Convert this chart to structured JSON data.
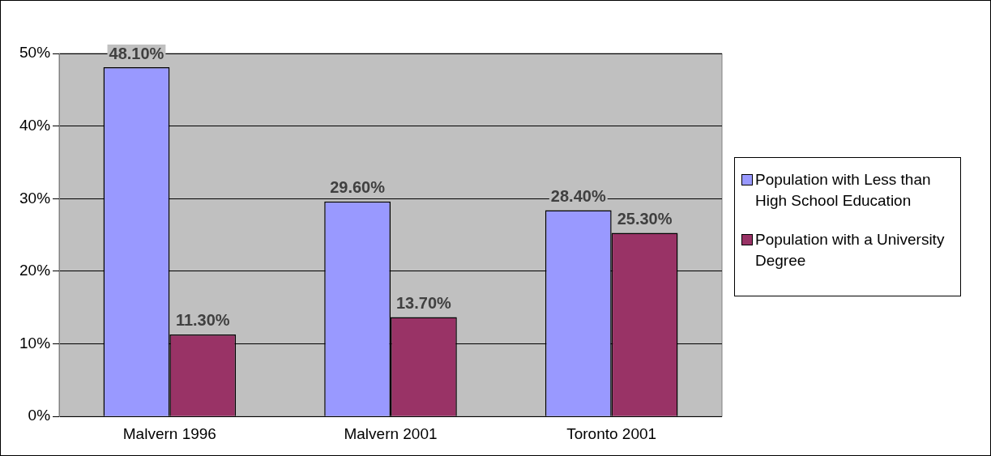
{
  "chart_data": {
    "type": "bar",
    "categories": [
      "Malvern 1996",
      "Malvern 2001",
      "Toronto 2001"
    ],
    "series": [
      {
        "name": "Population with Less than High School Education",
        "color": "#9999ff",
        "values": [
          48.1,
          29.6,
          28.4
        ],
        "value_labels": [
          "48.10%",
          "29.60%",
          "28.40%"
        ]
      },
      {
        "name": "Population with a University Degree",
        "color": "#993366",
        "values": [
          11.3,
          13.7,
          25.3
        ],
        "value_labels": [
          "11.30%",
          "13.70%",
          "25.30%"
        ]
      }
    ],
    "ylim": [
      0,
      50
    ],
    "yticks": [
      {
        "value": 0,
        "label": "0%"
      },
      {
        "value": 10,
        "label": "10%"
      },
      {
        "value": 20,
        "label": "20%"
      },
      {
        "value": 30,
        "label": "30%"
      },
      {
        "value": 40,
        "label": "40%"
      },
      {
        "value": 50,
        "label": "50%"
      }
    ],
    "grid": "y",
    "legend": "right"
  }
}
